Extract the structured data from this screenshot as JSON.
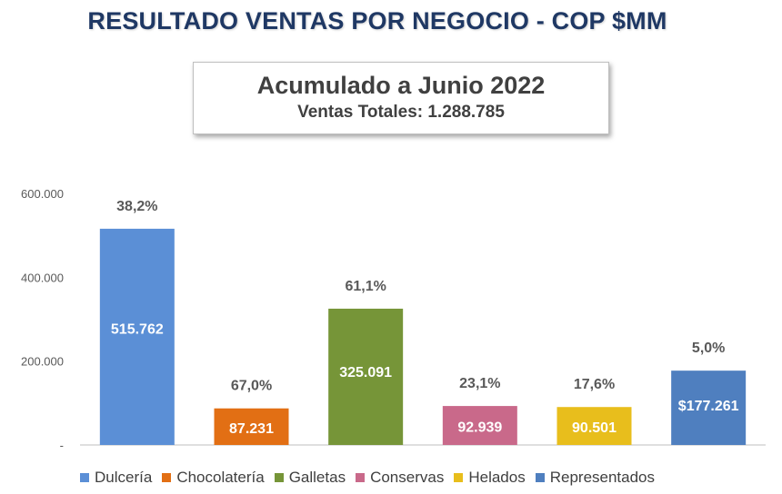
{
  "header": {
    "title": "RESULTADO VENTAS POR NEGOCIO - COP $MM"
  },
  "summary": {
    "title": "Acumulado a Junio 2022",
    "subtitle": "Ventas Totales: 1.288.785"
  },
  "chart_data": {
    "type": "bar",
    "title": "",
    "xlabel": "",
    "ylabel": "",
    "ylim": [
      0,
      600000
    ],
    "yticks": [
      0,
      200000,
      400000,
      600000
    ],
    "ytick_labels": [
      "-",
      "200.000",
      "400.000",
      "600.000"
    ],
    "grid": false,
    "legend_position": "bottom",
    "categories": [
      "Dulcería",
      "Chocolatería",
      "Galletas",
      "Conservas",
      "Helados",
      "Representados"
    ],
    "values": [
      515762,
      87231,
      325091,
      92939,
      90501,
      177261
    ],
    "value_labels": [
      "515.762",
      "87.231",
      "325.091",
      "92.939",
      "90.501",
      "$177.261"
    ],
    "growth_labels": [
      "38,2%",
      "67,0%",
      "61,1%",
      "23,1%",
      "17,6%",
      "5,0%"
    ],
    "colors": [
      "#5b8fd6",
      "#e26f14",
      "#769538",
      "#c9698a",
      "#e8be1c",
      "#4f7fbf"
    ]
  }
}
